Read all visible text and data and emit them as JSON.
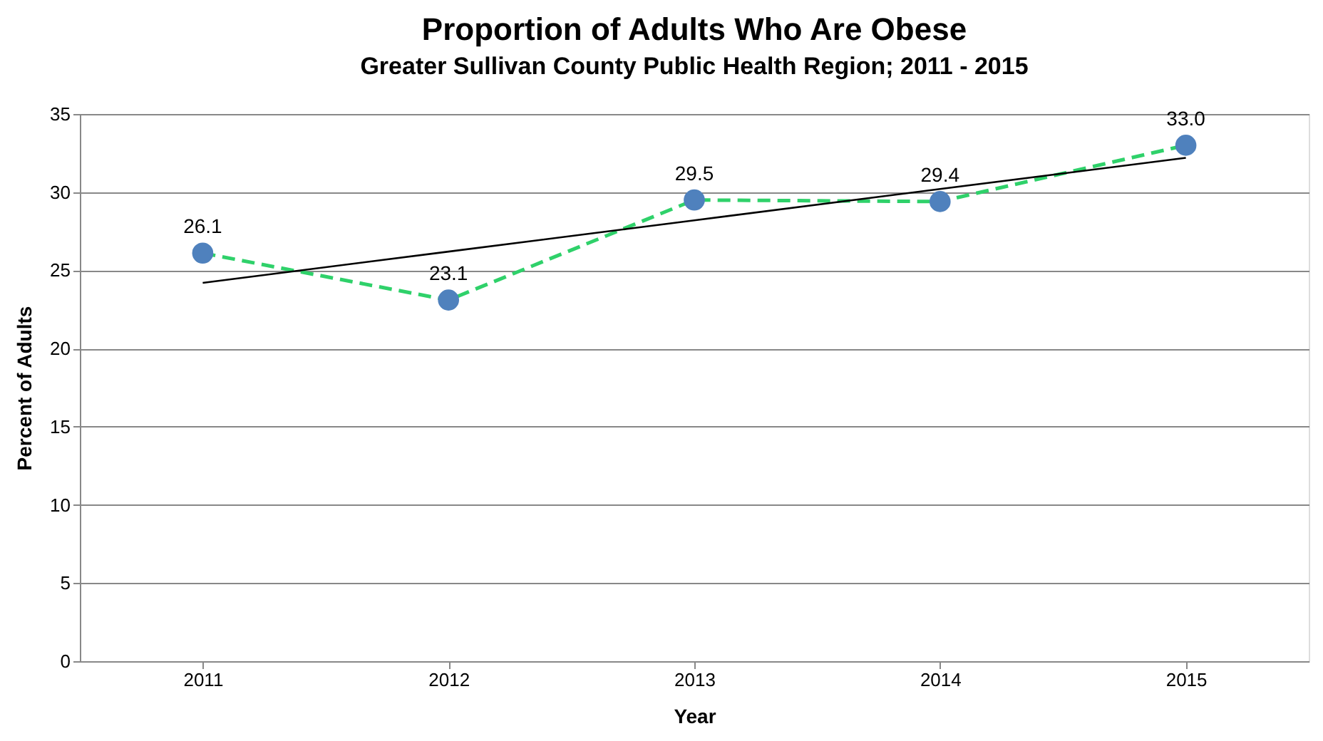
{
  "chart_data": {
    "type": "line",
    "title": "Proportion of Adults Who Are Obese",
    "subtitle": "Greater Sullivan County Public Health Region; 2011 - 2015",
    "xlabel": "Year",
    "ylabel": "Percent of Adults",
    "categories": [
      "2011",
      "2012",
      "2013",
      "2014",
      "2015"
    ],
    "ylim": [
      0,
      35
    ],
    "yticks": [
      0,
      5,
      10,
      15,
      20,
      25,
      30,
      35
    ],
    "grid": "y",
    "series": [
      {
        "type": "line",
        "color": "#2fd16a",
        "line_style": "dashed",
        "marker": "none",
        "values": [
          26.1,
          23.1,
          29.5,
          29.4,
          33.0
        ]
      },
      {
        "type": "scatter",
        "color": "#4f81bd",
        "marker": "circle",
        "values": [
          26.1,
          23.1,
          29.5,
          29.4,
          33.0
        ],
        "value_labels": [
          "26.1",
          "23.1",
          "29.5",
          "29.4",
          "33.0"
        ]
      },
      {
        "type": "line",
        "color": "#000000",
        "line_style": "solid",
        "marker": "none",
        "values": [
          24.2,
          26.2,
          28.2,
          30.2,
          32.2
        ]
      }
    ]
  }
}
